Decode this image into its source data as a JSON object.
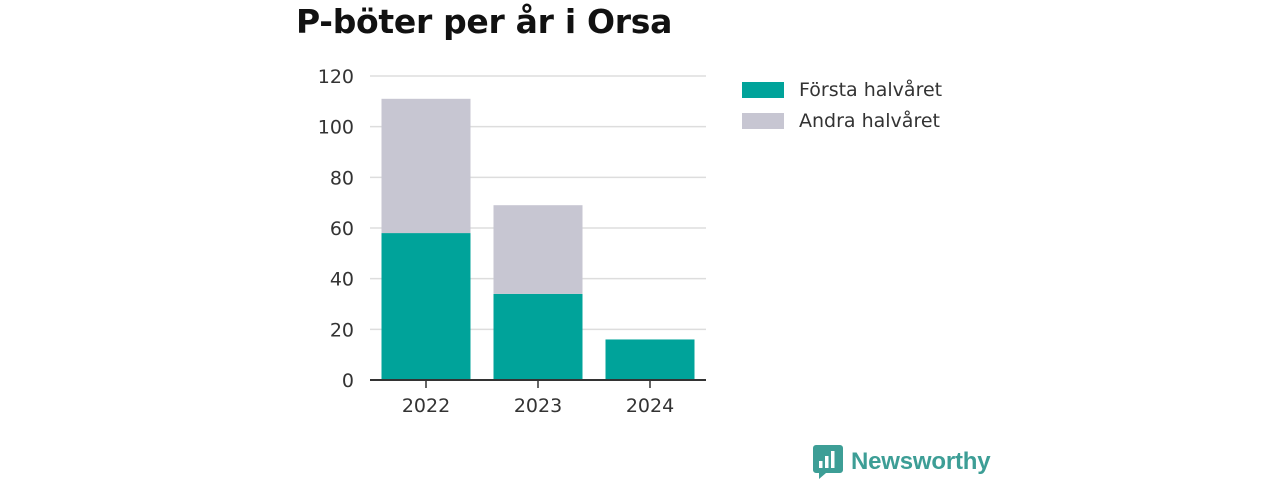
{
  "colors": {
    "series_first": "#00a39a",
    "series_second": "#c7c6d2",
    "grid": "#dddddd",
    "axis": "#333333",
    "brand": "#3d9e96"
  },
  "brand": {
    "name": "Newsworthy",
    "icon": "chart-bubble-icon"
  },
  "chart_data": {
    "type": "bar",
    "stacked": true,
    "title": "P-böter per år i Orsa",
    "xlabel": "",
    "ylabel": "",
    "categories": [
      "2022",
      "2023",
      "2024"
    ],
    "series": [
      {
        "name": "Första halvåret",
        "values": [
          58,
          34,
          16
        ]
      },
      {
        "name": "Andra halvåret",
        "values": [
          53,
          35,
          0
        ]
      }
    ],
    "ylim": [
      0,
      120
    ],
    "yticks": [
      "0",
      "20",
      "40",
      "60",
      "80",
      "100",
      "120"
    ],
    "grid": true,
    "legend_position": "right"
  }
}
